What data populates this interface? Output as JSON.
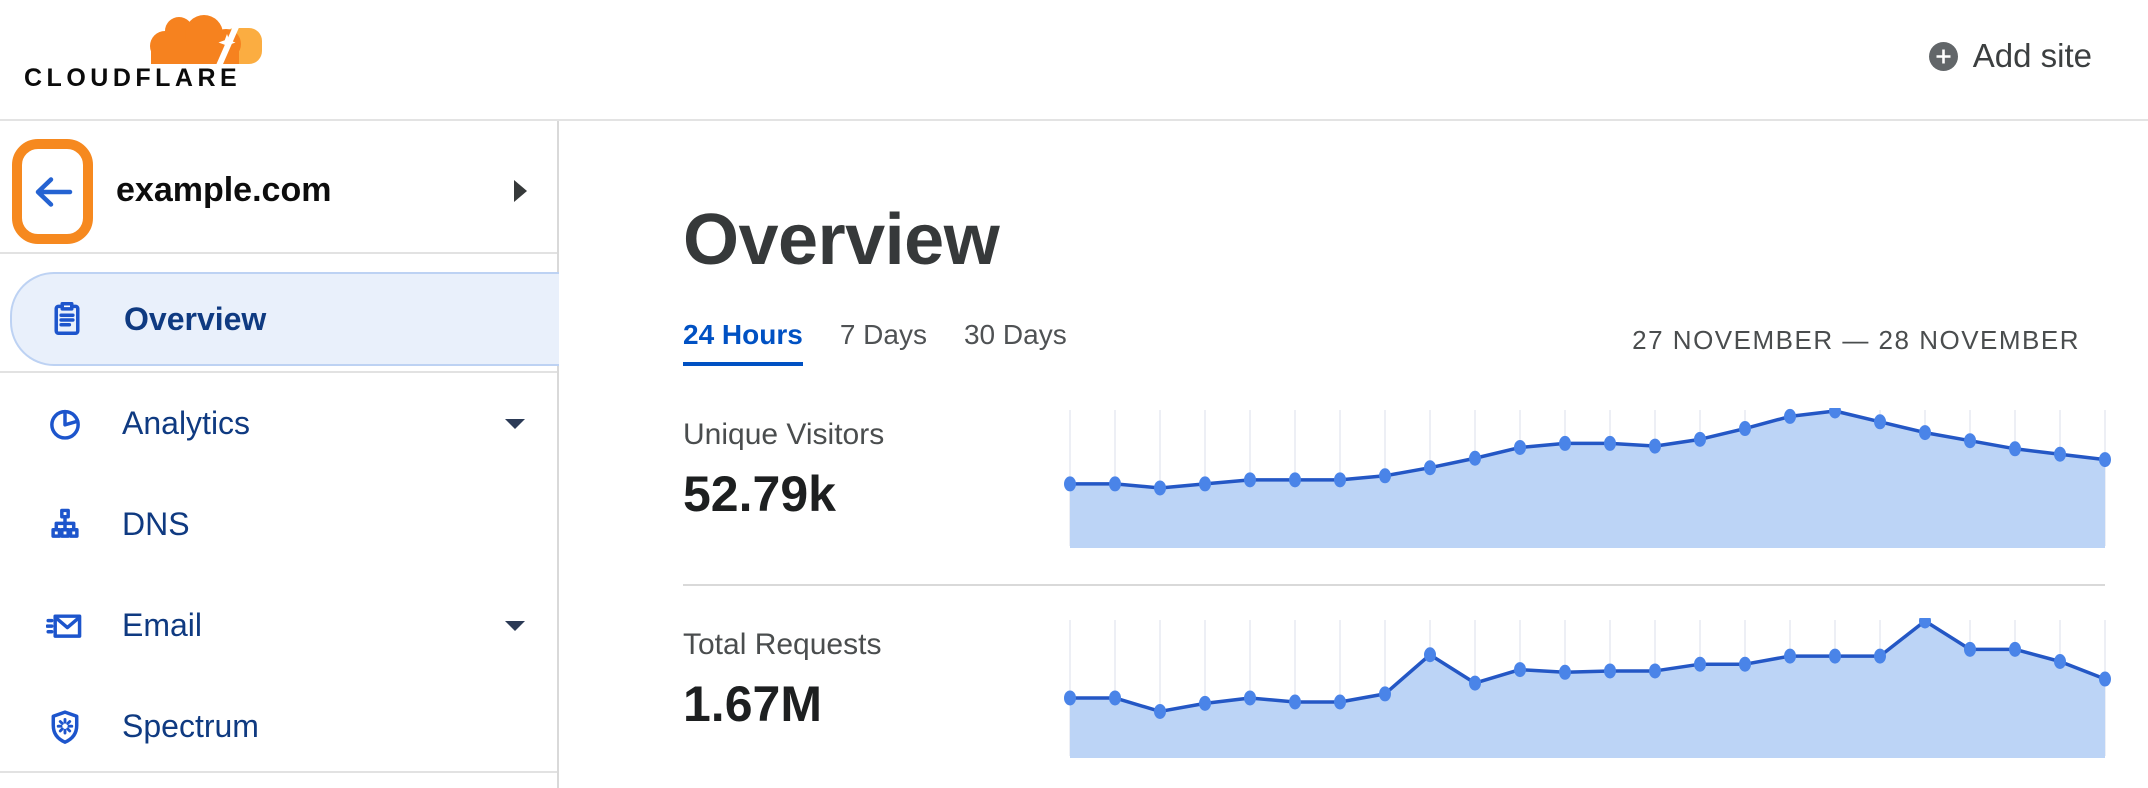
{
  "header": {
    "logo_text": "CLOUDFLARE",
    "add_site_label": "Add site"
  },
  "sidebar": {
    "site_name": "example.com",
    "items": [
      {
        "label": "Overview",
        "icon": "clipboard-icon",
        "active": true,
        "has_submenu": false
      },
      {
        "label": "Analytics",
        "icon": "pie-chart-icon",
        "active": false,
        "has_submenu": true
      },
      {
        "label": "DNS",
        "icon": "dns-tree-icon",
        "active": false,
        "has_submenu": false
      },
      {
        "label": "Email",
        "icon": "email-envelope-icon",
        "active": false,
        "has_submenu": true
      },
      {
        "label": "Spectrum",
        "icon": "shield-spark-icon",
        "active": false,
        "has_submenu": false
      }
    ]
  },
  "main": {
    "title": "Overview",
    "tabs": [
      {
        "label": "24 Hours",
        "active": true
      },
      {
        "label": "7 Days",
        "active": false
      },
      {
        "label": "30 Days",
        "active": false
      }
    ],
    "date_range": "27 NOVEMBER — 28 NOVEMBER",
    "metrics": [
      {
        "label": "Unique Visitors",
        "value": "52.79k"
      },
      {
        "label": "Total Requests",
        "value": "1.67M"
      }
    ]
  },
  "colors": {
    "brand_orange": "#f6821f",
    "brand_orange_light": "#fbad41",
    "highlight_ring_orange": "#f6891f",
    "link_blue": "#0051c3",
    "sidebar_navy": "#0f3a81",
    "icon_blue": "#1d55cc"
  },
  "chart_data": [
    {
      "type": "area",
      "title": "Unique Visitors",
      "displayed_total": "52.79k",
      "x_description": "24 hourly points, 27 November — 28 November",
      "y_description": "relative height percent (sparkline, no axis labels shown)",
      "values": [
        46,
        46,
        43,
        46,
        49,
        49,
        49,
        52,
        58,
        65,
        73,
        76,
        76,
        74,
        79,
        87,
        96,
        100,
        92,
        84,
        78,
        72,
        68,
        64
      ],
      "line_color": "#2457c5",
      "dot_color": "#4a84e8",
      "fill_color": "#bcd4f6",
      "grid_color": "#edeff5"
    },
    {
      "type": "area",
      "title": "Total Requests",
      "displayed_total": "1.67M",
      "x_description": "24 hourly points, 27 November — 28 November",
      "y_description": "relative height percent (sparkline, no axis labels shown)",
      "values": [
        43,
        43,
        33,
        39,
        43,
        40,
        40,
        46,
        75,
        54,
        64,
        62,
        63,
        63,
        68,
        68,
        74,
        74,
        74,
        100,
        79,
        79,
        70,
        57
      ],
      "line_color": "#2457c5",
      "dot_color": "#4a84e8",
      "fill_color": "#bcd4f6",
      "grid_color": "#edeff5"
    }
  ]
}
